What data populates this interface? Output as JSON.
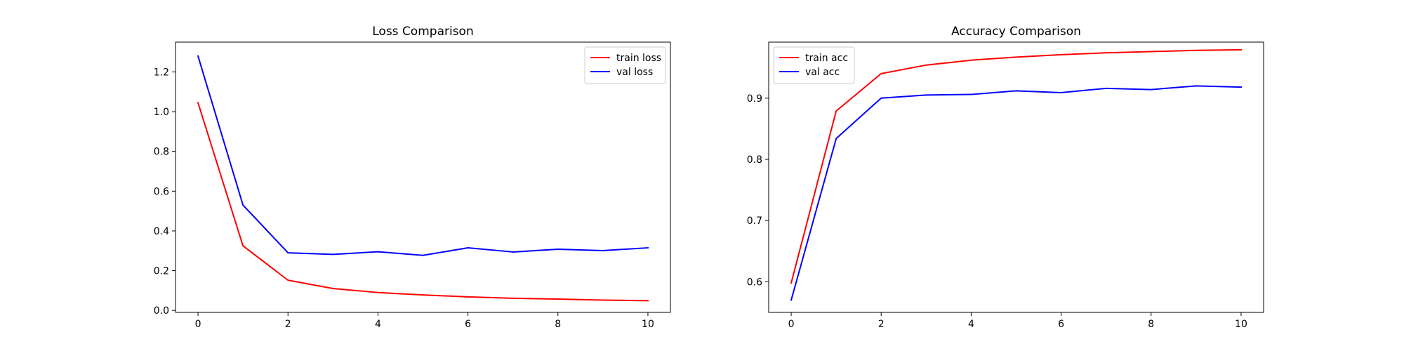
{
  "chart_data": [
    {
      "type": "line",
      "title": "Loss Comparison",
      "xlabel": "",
      "ylabel": "",
      "x": [
        0,
        1,
        2,
        3,
        4,
        5,
        6,
        7,
        8,
        9,
        10
      ],
      "xlim": [
        -0.5,
        10.5
      ],
      "ylim": [
        -0.01,
        1.35
      ],
      "xticks": [
        0,
        2,
        4,
        6,
        8,
        10
      ],
      "yticks": [
        0.0,
        0.2,
        0.4,
        0.6,
        0.8,
        1.0,
        1.2
      ],
      "ytick_labels": [
        "0.0",
        "0.2",
        "0.4",
        "0.6",
        "0.8",
        "1.0",
        "1.2"
      ],
      "grid": false,
      "legend_position": "top-right",
      "series": [
        {
          "name": "train loss",
          "color": "#ff0000",
          "values": [
            1.045,
            0.325,
            0.152,
            0.11,
            0.09,
            0.078,
            0.068,
            0.061,
            0.057,
            0.052,
            0.049
          ]
        },
        {
          "name": "val loss",
          "color": "#0000ff",
          "values": [
            1.28,
            0.53,
            0.29,
            0.282,
            0.295,
            0.277,
            0.315,
            0.294,
            0.308,
            0.301,
            0.315
          ]
        }
      ]
    },
    {
      "type": "line",
      "title": "Accuracy Comparison",
      "xlabel": "",
      "ylabel": "",
      "x": [
        0,
        1,
        2,
        3,
        4,
        5,
        6,
        7,
        8,
        9,
        10
      ],
      "xlim": [
        -0.5,
        10.5
      ],
      "ylim": [
        0.55,
        0.9915
      ],
      "xticks": [
        0,
        2,
        4,
        6,
        8,
        10
      ],
      "yticks": [
        0.6,
        0.7,
        0.8,
        0.9
      ],
      "ytick_labels": [
        "0.6",
        "0.7",
        "0.8",
        "0.9"
      ],
      "grid": false,
      "legend_position": "top-left",
      "series": [
        {
          "name": "train acc",
          "color": "#ff0000",
          "values": [
            0.598,
            0.879,
            0.94,
            0.954,
            0.962,
            0.967,
            0.971,
            0.974,
            0.976,
            0.978,
            0.979
          ]
        },
        {
          "name": "val acc",
          "color": "#0000ff",
          "values": [
            0.57,
            0.834,
            0.9,
            0.905,
            0.906,
            0.912,
            0.909,
            0.916,
            0.914,
            0.92,
            0.918
          ]
        }
      ]
    }
  ]
}
